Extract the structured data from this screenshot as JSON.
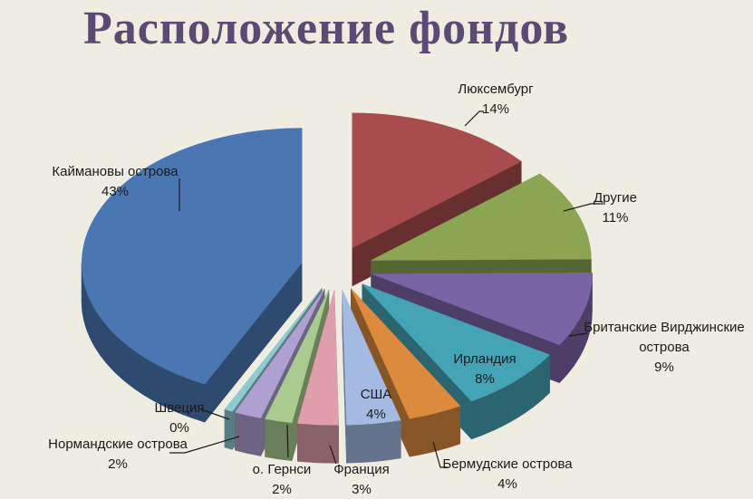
{
  "page": {
    "background": "#efece1"
  },
  "title": {
    "text": "Расположение фондов",
    "color": "#5b4a73"
  },
  "chart_data": {
    "type": "pie",
    "title": "Расположение фондов",
    "style": "3d-exploded-pie",
    "unit": "%",
    "start_angle_deg": 0,
    "direction": "clockwise",
    "legend": "none",
    "slices": [
      {
        "key": "luxembourg",
        "label": "Люксембург",
        "value": 14,
        "pct_label": "14%",
        "color": "#a84c4e"
      },
      {
        "key": "other",
        "label": "Другие",
        "value": 11,
        "pct_label": "11%",
        "color": "#8ba553"
      },
      {
        "key": "bvi",
        "label": "Британские Вирджинские острова",
        "value": 9,
        "pct_label": "9%",
        "color": "#7a64a6"
      },
      {
        "key": "ireland",
        "label": "Ирландия",
        "value": 8,
        "pct_label": "8%",
        "color": "#44a3b4"
      },
      {
        "key": "bermuda",
        "label": "Бермудские острова",
        "value": 4,
        "pct_label": "4%",
        "color": "#dc8b3e"
      },
      {
        "key": "usa",
        "label": "США",
        "value": 4,
        "pct_label": "4%",
        "color": "#a4bae2"
      },
      {
        "key": "france",
        "label": "Франция",
        "value": 3,
        "pct_label": "3%",
        "color": "#de9eab"
      },
      {
        "key": "guernsey",
        "label": "о. Гернси",
        "value": 2,
        "pct_label": "2%",
        "color": "#a9cb8f"
      },
      {
        "key": "normandy",
        "label": "Нормандские острова",
        "value": 2,
        "pct_label": "2%",
        "color": "#afa0d2"
      },
      {
        "key": "sweden",
        "label": "Швеция",
        "value": 0,
        "pct_label": "0%",
        "color": "#8fcad3"
      },
      {
        "key": "cayman",
        "label": "Каймановы острова",
        "value": 43,
        "pct_label": "43%",
        "color": "#4a77b2"
      }
    ]
  }
}
